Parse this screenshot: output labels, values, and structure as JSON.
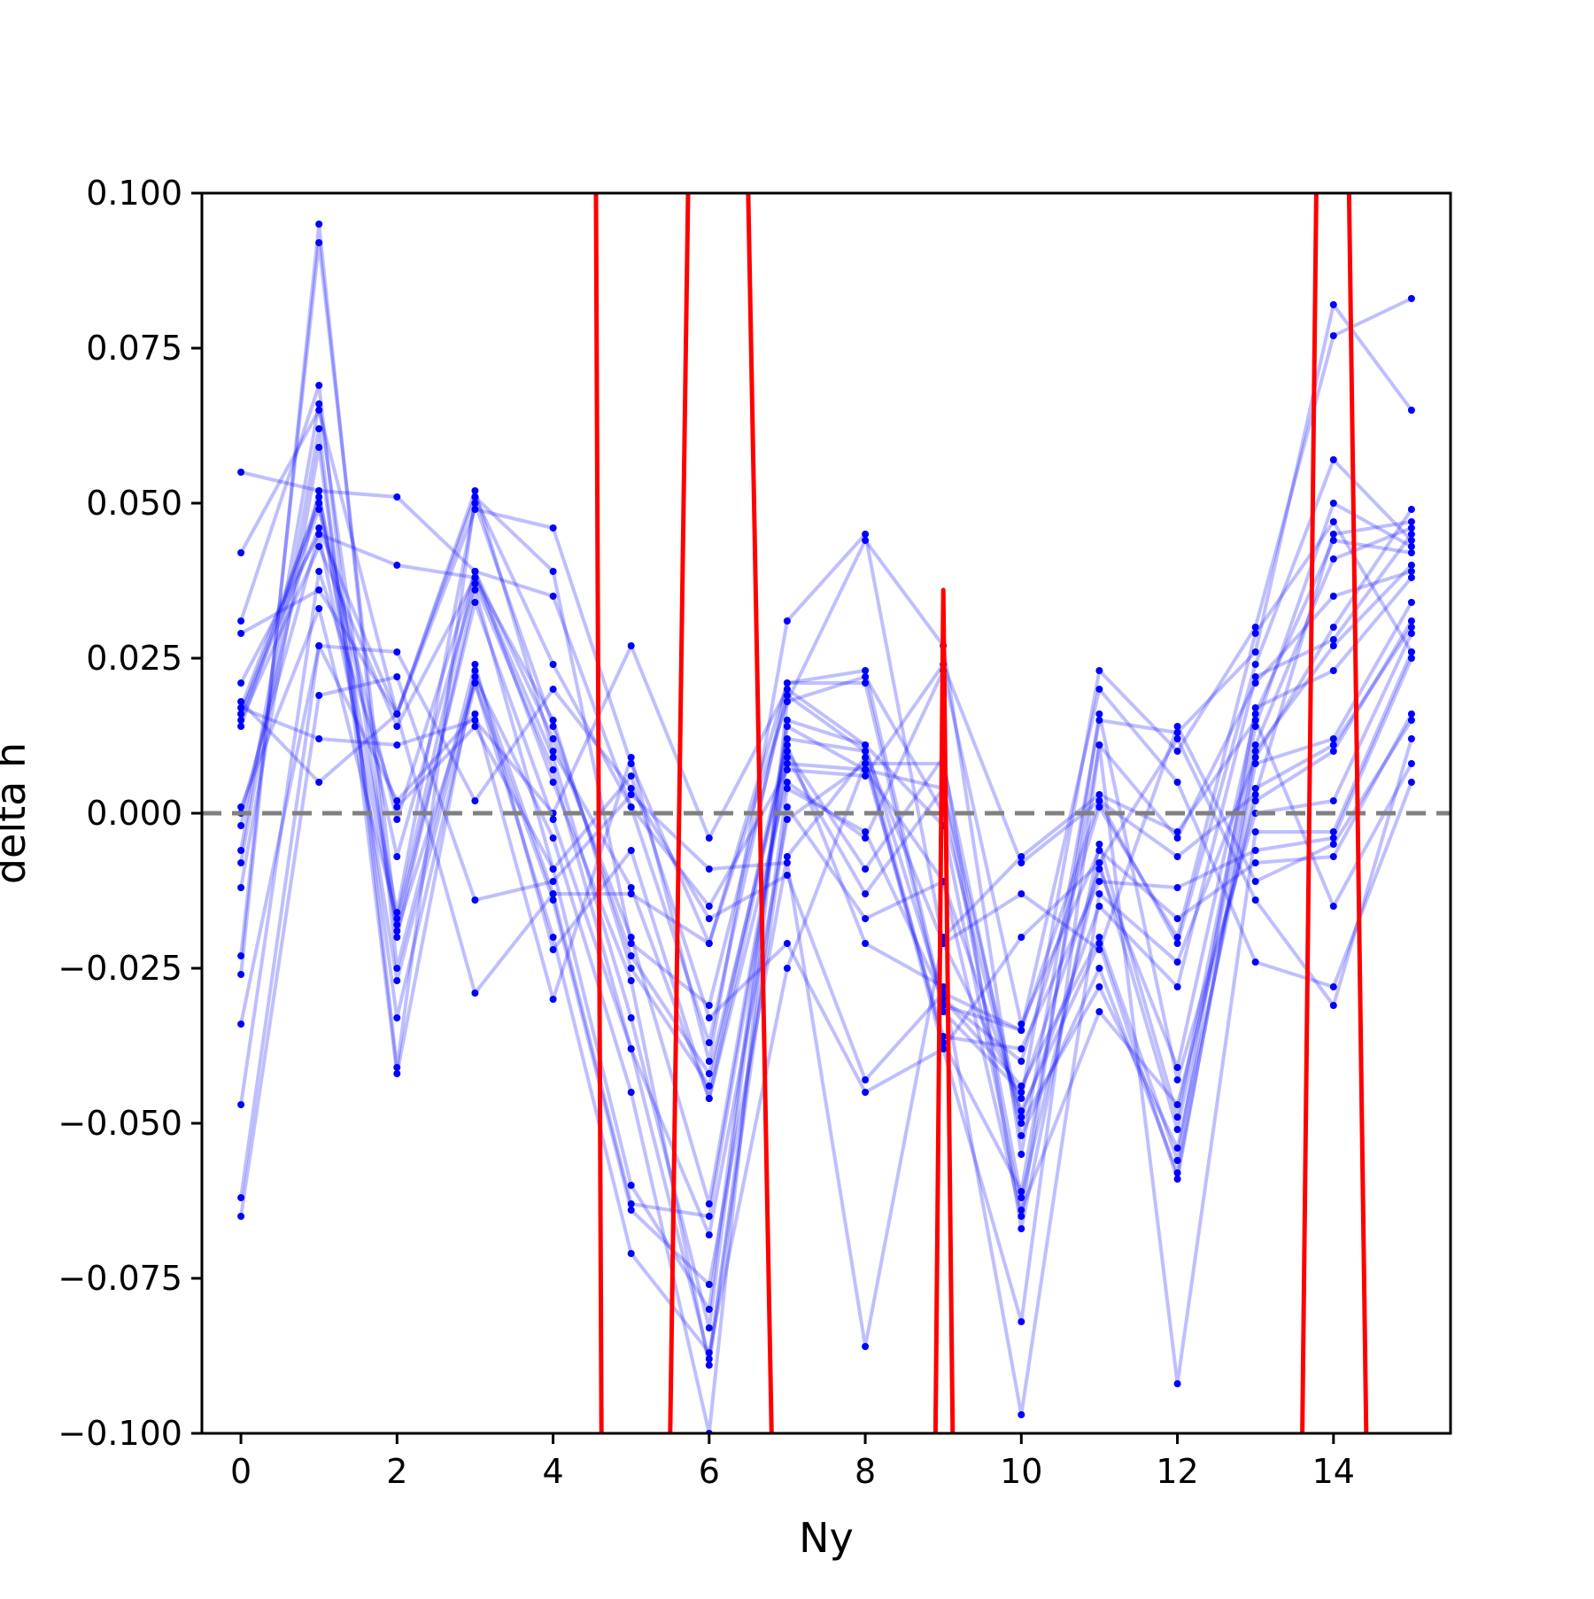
{
  "chart_data": {
    "type": "line",
    "xlabel": "Ny",
    "ylabel": "delta h",
    "xlim": [
      -0.5,
      15.5
    ],
    "ylim": [
      -0.1,
      0.1
    ],
    "grid": false,
    "x_ticks": [
      "0",
      "2",
      "4",
      "6",
      "8",
      "10",
      "12",
      "14"
    ],
    "y_ticks": [
      "0.100",
      "0.075",
      "0.050",
      "0.025",
      "0.000",
      "−0.025",
      "−0.050",
      "−0.075",
      "−0.100"
    ],
    "reference_line": {
      "y": 0.0,
      "style": "dashed",
      "color": "#808080"
    },
    "colors": {
      "samples": "#0000ff",
      "mean": "#ff0000"
    },
    "x": [
      0,
      1,
      2,
      3,
      4,
      5,
      6,
      7,
      8,
      9,
      10,
      11,
      12,
      13,
      14,
      15
    ],
    "series": [
      {
        "values": [
          0.055,
          0.052,
          0.051,
          0.039,
          0.035,
          0.001,
          -0.015,
          0.007,
          0.006,
          0.024,
          -0.008,
          0.002,
          -0.007,
          0.003,
          0.045,
          0.047
        ]
      },
      {
        "values": [
          0.042,
          0.065,
          0.016,
          0.049,
          0.046,
          0.008,
          -0.021,
          0.018,
          0.044,
          0.027,
          -0.055,
          0.015,
          0.013,
          0.026,
          0.082,
          0.065
        ]
      },
      {
        "values": [
          0.031,
          0.069,
          -0.041,
          0.051,
          0.039,
          -0.021,
          -0.031,
          0.019,
          0.01,
          -0.021,
          -0.046,
          0.023,
          0.01,
          0.03,
          0.077,
          0.083
        ]
      },
      {
        "values": [
          0.029,
          0.036,
          0.016,
          0.051,
          0.024,
          0.001,
          -0.037,
          0.021,
          0.023,
          -0.031,
          -0.035,
          0.002,
          -0.021,
          0.024,
          0.057,
          0.044
        ]
      },
      {
        "values": [
          0.021,
          0.045,
          0.04,
          0.038,
          0.015,
          -0.025,
          -0.044,
          0.012,
          0.01,
          -0.037,
          -0.061,
          0.011,
          -0.004,
          0.021,
          0.035,
          0.039
        ]
      },
      {
        "values": [
          0.017,
          0.05,
          -0.016,
          0.05,
          0.014,
          -0.023,
          -0.042,
          0.01,
          -0.009,
          0.009,
          -0.067,
          -0.005,
          -0.049,
          0.014,
          0.05,
          0.043
        ]
      },
      {
        "values": [
          0.016,
          0.049,
          -0.001,
          0.039,
          0.012,
          -0.02,
          -0.063,
          0.009,
          -0.013,
          0.004,
          -0.062,
          -0.008,
          -0.051,
          0.011,
          0.041,
          0.046
        ]
      },
      {
        "values": [
          0.016,
          0.046,
          0.016,
          0.052,
          0.01,
          -0.012,
          -0.046,
          0.011,
          -0.021,
          -0.028,
          -0.097,
          -0.013,
          -0.024,
          0.009,
          0.03,
          0.049
        ]
      },
      {
        "values": [
          0.015,
          0.043,
          0.014,
          0.038,
          0.009,
          -0.033,
          -0.083,
          0.014,
          0.007,
          0.004,
          -0.049,
          -0.015,
          -0.028,
          0.022,
          0.028,
          0.045
        ]
      },
      {
        "values": [
          0.014,
          0.051,
          -0.007,
          0.037,
          0.007,
          -0.038,
          -0.088,
          0.004,
          -0.003,
          -0.03,
          -0.044,
          -0.02,
          -0.056,
          0.017,
          0.023,
          0.038
        ]
      },
      {
        "values": [
          0.001,
          0.033,
          -0.017,
          0.039,
          0.005,
          -0.027,
          -0.089,
          0.001,
          -0.017,
          -0.011,
          -0.048,
          -0.021,
          -0.059,
          0.01,
          0.027,
          0.04
        ]
      },
      {
        "values": [
          0.0,
          0.045,
          -0.018,
          0.034,
          -0.001,
          -0.038,
          -0.068,
          -0.001,
          0.008,
          0.008,
          -0.052,
          -0.025,
          -0.058,
          0.008,
          0.012,
          0.034
        ]
      },
      {
        "values": [
          -0.002,
          0.052,
          -0.027,
          0.022,
          -0.004,
          -0.045,
          -0.1,
          0.018,
          0.022,
          0.0,
          -0.05,
          -0.028,
          -0.054,
          0.004,
          0.011,
          0.03
        ]
      },
      {
        "values": [
          -0.006,
          0.066,
          -0.02,
          0.036,
          -0.009,
          -0.06,
          -0.08,
          0.015,
          0.011,
          -0.002,
          -0.064,
          -0.032,
          -0.047,
          0.002,
          0.01,
          0.031
        ]
      },
      {
        "values": [
          -0.008,
          0.062,
          -0.042,
          0.023,
          -0.013,
          -0.063,
          -0.065,
          0.008,
          0.007,
          -0.011,
          -0.065,
          0.016,
          -0.043,
          0.0,
          0.002,
          0.029
        ]
      },
      {
        "values": [
          -0.012,
          0.059,
          -0.033,
          0.021,
          -0.014,
          -0.064,
          -0.076,
          -0.007,
          0.009,
          -0.038,
          -0.082,
          0.011,
          -0.092,
          -0.003,
          -0.003,
          0.026
        ]
      },
      {
        "values": [
          -0.023,
          0.092,
          -0.019,
          0.021,
          -0.02,
          -0.071,
          -0.087,
          -0.025,
          0.008,
          -0.036,
          -0.038,
          -0.011,
          -0.012,
          -0.006,
          -0.004,
          0.025
        ]
      },
      {
        "values": [
          -0.026,
          0.095,
          -0.025,
          0.024,
          -0.022,
          -0.006,
          -0.046,
          0.005,
          -0.004,
          0.023,
          -0.034,
          -0.006,
          -0.017,
          -0.008,
          -0.007,
          0.016
        ]
      },
      {
        "values": [
          -0.034,
          0.027,
          0.002,
          0.016,
          -0.03,
          0.009,
          -0.04,
          0.031,
          0.045,
          -0.021,
          -0.013,
          -0.022,
          0.014,
          -0.011,
          -0.005,
          0.015
        ]
      },
      {
        "values": [
          -0.047,
          0.039,
          0.001,
          0.014,
          -0.009,
          0.006,
          -0.033,
          -0.021,
          -0.045,
          -0.038,
          -0.02,
          -0.008,
          0.012,
          -0.014,
          -0.031,
          0.012
        ]
      },
      {
        "values": [
          -0.062,
          0.027,
          0.026,
          0.002,
          0.02,
          0.004,
          -0.017,
          -0.01,
          -0.043,
          -0.029,
          -0.035,
          0.02,
          0.005,
          -0.024,
          -0.028,
          0.005
        ]
      },
      {
        "values": [
          -0.065,
          0.019,
          0.022,
          -0.014,
          -0.011,
          0.003,
          -0.009,
          -0.008,
          -0.086,
          -0.02,
          -0.007,
          0.003,
          -0.003,
          0.015,
          -0.015,
          0.008
        ]
      },
      {
        "values": [
          0.017,
          0.012,
          0.011,
          0.015,
          0.0,
          0.027,
          -0.004,
          0.02,
          0.011,
          -0.03,
          -0.04,
          0.001,
          -0.02,
          0.029,
          0.047,
          0.026
        ]
      },
      {
        "values": [
          0.018,
          0.005,
          0.016,
          -0.029,
          -0.013,
          -0.013,
          -0.021,
          0.021,
          0.021,
          -0.032,
          -0.045,
          -0.009,
          -0.041,
          0.016,
          0.044,
          0.042
        ]
      }
    ],
    "mean_line": {
      "values": [
        null,
        null,
        null,
        null,
        null,
        null,
        null,
        null,
        null,
        null,
        null,
        null,
        null,
        null,
        null,
        null
      ],
      "segments": [
        {
          "x": [
            4.55,
            4.62
          ],
          "y": [
            0.1,
            -0.1
          ]
        },
        {
          "x": [
            5.5,
            5.73
          ],
          "y": [
            -0.1,
            0.1
          ]
        },
        {
          "x": [
            6.5,
            6.8
          ],
          "y": [
            0.1,
            -0.1
          ]
        },
        {
          "x": [
            8.9,
            9.0,
            9.12
          ],
          "y": [
            -0.1,
            0.036,
            -0.1
          ]
        },
        {
          "x": [
            13.6,
            13.78
          ],
          "y": [
            -0.1,
            0.1
          ]
        },
        {
          "x": [
            14.2,
            14.42
          ],
          "y": [
            0.1,
            -0.1
          ]
        }
      ]
    }
  }
}
